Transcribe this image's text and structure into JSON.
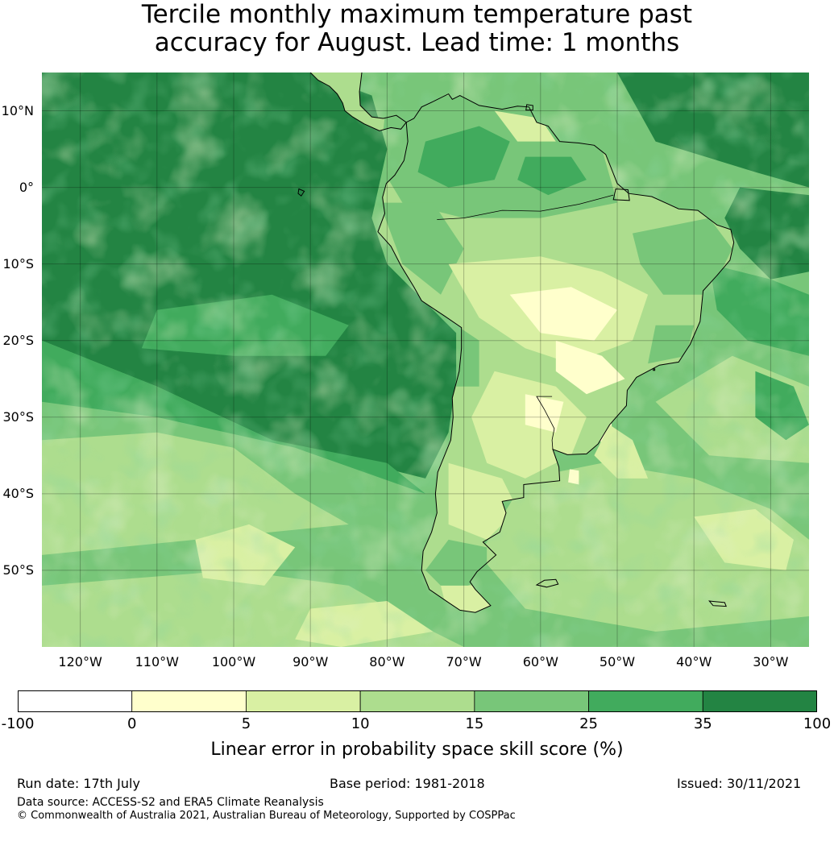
{
  "title": {
    "line1": "Tercile monthly maximum temperature past",
    "line2": "accuracy for August. Lead time: 1 months"
  },
  "map": {
    "projection": "equirectangular",
    "lon_range": [
      -125,
      -25
    ],
    "lat_range": [
      -60,
      15
    ],
    "grid": true,
    "lat_ticks": [
      {
        "value": 10,
        "label": "10°N"
      },
      {
        "value": 0,
        "label": "0°"
      },
      {
        "value": -10,
        "label": "10°S"
      },
      {
        "value": -20,
        "label": "20°S"
      },
      {
        "value": -30,
        "label": "30°S"
      },
      {
        "value": -40,
        "label": "40°S"
      },
      {
        "value": -50,
        "label": "50°S"
      }
    ],
    "lon_ticks": [
      {
        "value": -120,
        "label": "120°W"
      },
      {
        "value": -110,
        "label": "110°W"
      },
      {
        "value": -100,
        "label": "100°W"
      },
      {
        "value": -90,
        "label": "90°W"
      },
      {
        "value": -80,
        "label": "80°W"
      },
      {
        "value": -70,
        "label": "70°W"
      },
      {
        "value": -60,
        "label": "60°W"
      },
      {
        "value": -50,
        "label": "50°W"
      },
      {
        "value": -40,
        "label": "40°W"
      },
      {
        "value": -30,
        "label": "30°W"
      }
    ],
    "palette": {
      "lt0": "#ffffff",
      "0-5": "#ffffcc",
      "5-10": "#d9f0a3",
      "10-15": "#addd8e",
      "15-25": "#78c679",
      "25-35": "#41ab5d",
      "gt35": "#238443"
    }
  },
  "colorbar": {
    "bounds": [
      -100,
      0,
      5,
      10,
      15,
      25,
      35,
      100
    ],
    "tick_labels": [
      "-100",
      "0",
      "5",
      "10",
      "15",
      "25",
      "35",
      "100"
    ],
    "colors": [
      "#ffffff",
      "#ffffcc",
      "#d9f0a3",
      "#addd8e",
      "#78c679",
      "#41ab5d",
      "#238443"
    ],
    "label": "Linear error in probability space skill score (%)"
  },
  "footer": {
    "run_date": "Run date: 17th July",
    "base_period": "Base period: 1981-2018",
    "issued": "Issued: 30/11/2021",
    "data_source": "Data source: ACCESS-S2 and ERA5 Climate Reanalysis",
    "copyright": "© Commonwealth of Australia 2021, Australian Bureau of Meteorology, Supported by COSPPac"
  }
}
